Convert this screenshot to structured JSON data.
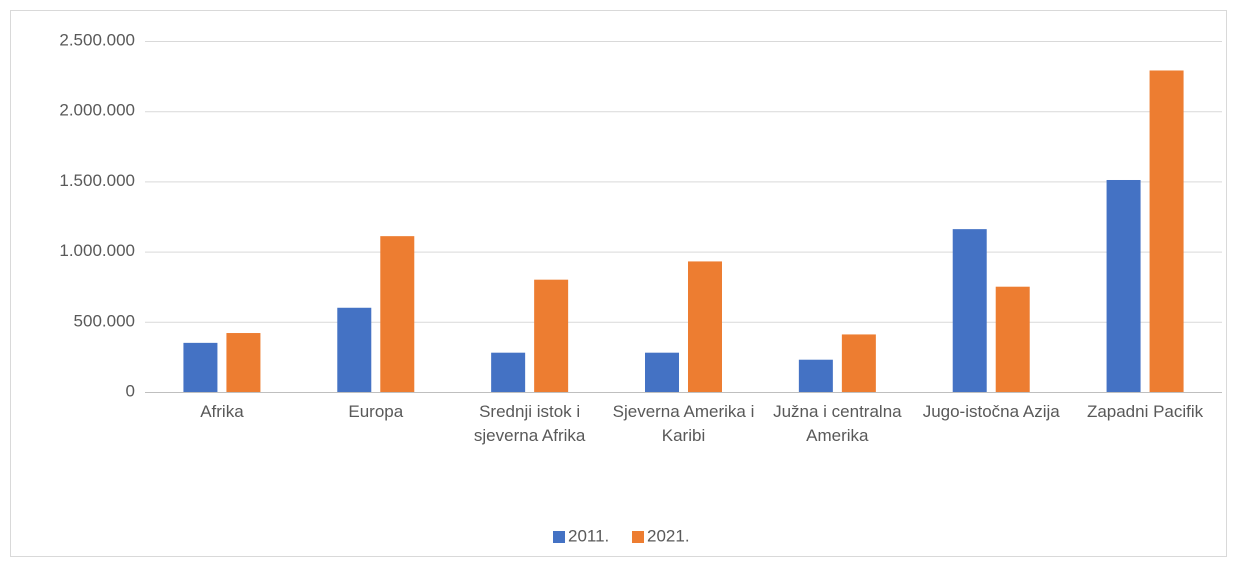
{
  "chart_data": {
    "type": "bar",
    "categories": [
      "Afrika",
      "Europa",
      "Srednji istok i sjeverna Afrika",
      "Sjeverna Amerika i Karibi",
      "Južna i centralna Amerika",
      "Jugo-istočna Azija",
      "Zapadni Pacifik"
    ],
    "series": [
      {
        "name": "2011.",
        "color": "#4472c4",
        "values": [
          350000,
          600000,
          280000,
          280000,
          230000,
          1160000,
          1510000
        ]
      },
      {
        "name": "2021.",
        "color": "#ed7d31",
        "values": [
          420000,
          1110000,
          800000,
          930000,
          410000,
          750000,
          2290000
        ]
      }
    ],
    "ylim": [
      0,
      2500000
    ],
    "yticks": [
      0,
      {
        "value": 500000,
        "label": "500.000"
      },
      {
        "value": 1000000,
        "label": "1.000.000"
      },
      {
        "value": 1500000,
        "label": "1.500.000"
      },
      {
        "value": 2000000,
        "label": "2.000.000"
      },
      {
        "value": 2500000,
        "label": "2.500.000"
      }
    ],
    "grid": true,
    "legend": "bottom"
  }
}
